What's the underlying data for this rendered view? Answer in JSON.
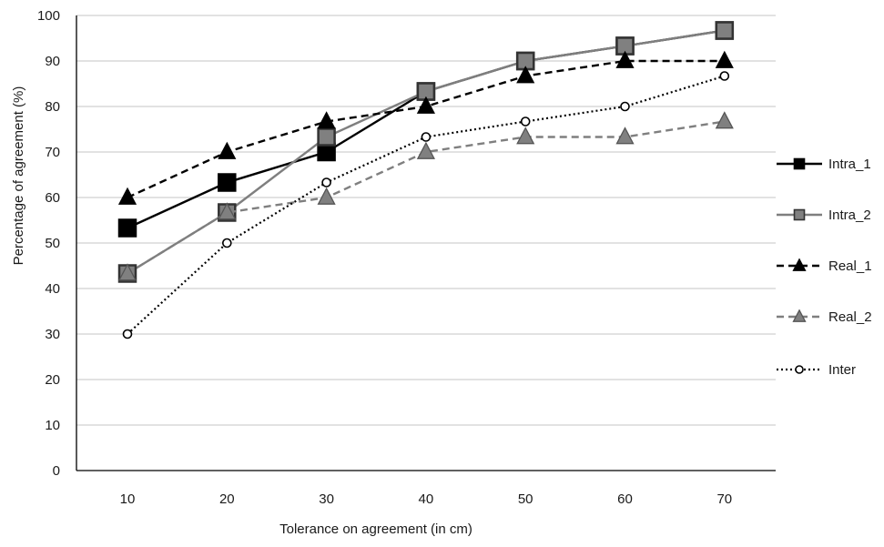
{
  "chart_data": {
    "type": "line",
    "title": "",
    "xlabel": "Tolerance on agreement (in cm)",
    "ylabel": "Percentage of agreement (%)",
    "categories": [
      10,
      20,
      30,
      40,
      50,
      60,
      70
    ],
    "ylim": [
      0,
      100
    ],
    "yticks": [
      0,
      10,
      20,
      30,
      40,
      50,
      60,
      70,
      80,
      90,
      100
    ],
    "grid": true,
    "legend_position": "right",
    "series": [
      {
        "name": "Intra_1",
        "values": [
          53.3,
          63.3,
          70,
          83.3,
          90,
          93.3,
          96.7
        ],
        "color": "#000000",
        "dash": "solid",
        "marker": "square",
        "marker_fill": "#000000"
      },
      {
        "name": "Intra_2",
        "values": [
          43.3,
          56.7,
          73.3,
          83.3,
          90,
          93.3,
          96.7
        ],
        "color": "#7f7f7f",
        "dash": "solid",
        "marker": "square",
        "marker_fill": "#808080"
      },
      {
        "name": "Real_1",
        "values": [
          60,
          70,
          76.7,
          80,
          86.7,
          90,
          90
        ],
        "color": "#000000",
        "dash": "dash",
        "marker": "triangle",
        "marker_fill": "#000000"
      },
      {
        "name": "Real_2",
        "values": [
          43.3,
          56.7,
          60,
          70,
          73.3,
          73.3,
          76.7
        ],
        "color": "#7f7f7f",
        "dash": "dash",
        "marker": "triangle",
        "marker_fill": "#808080"
      },
      {
        "name": "Inter",
        "values": [
          30,
          50,
          63.3,
          73.3,
          76.7,
          80,
          86.7
        ],
        "color": "#000000",
        "dash": "dot",
        "marker": "circle",
        "marker_fill": "#ffffff"
      }
    ]
  }
}
